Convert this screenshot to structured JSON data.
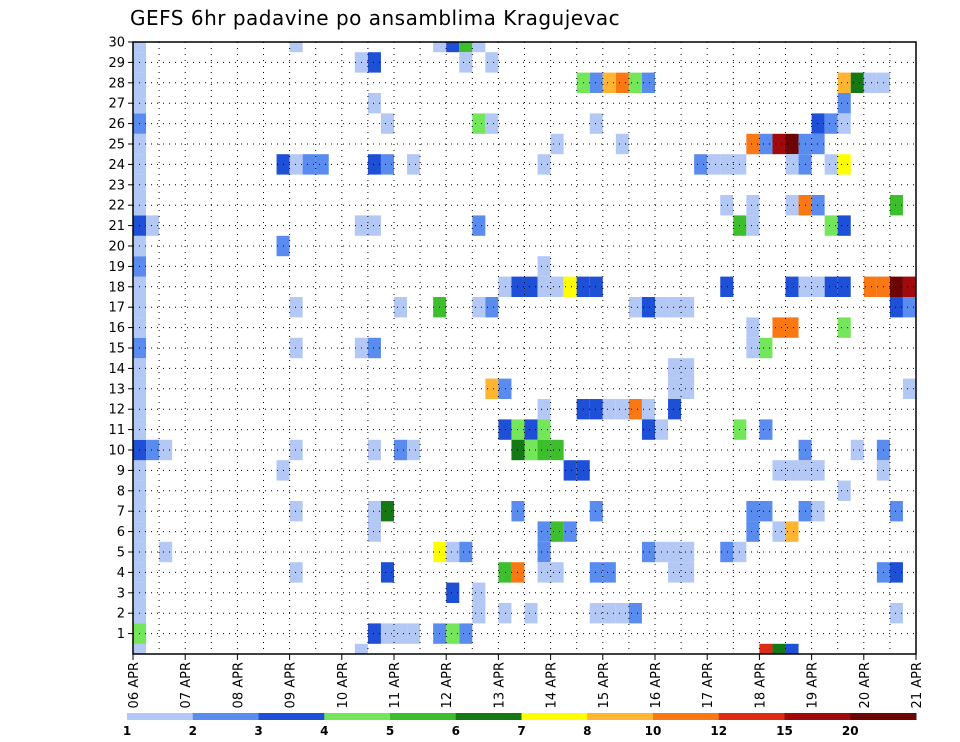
{
  "chart_data": {
    "type": "heatmap",
    "title": "GEFS 6hr padavine po ansamblima Kragujevac",
    "y_labels": [
      "1",
      "2",
      "3",
      "4",
      "5",
      "6",
      "7",
      "8",
      "9",
      "10",
      "11",
      "12",
      "13",
      "14",
      "15",
      "16",
      "17",
      "18",
      "19",
      "20",
      "21",
      "22",
      "23",
      "24",
      "25",
      "26",
      "27",
      "28",
      "29",
      "30"
    ],
    "x_labels": [
      "06 APR",
      "07 APR",
      "08 APR",
      "09 APR",
      "10 APR",
      "11 APR",
      "12 APR",
      "13 APR",
      "14 APR",
      "15 APR",
      "16 APR",
      "17 APR",
      "18 APR",
      "19 APR",
      "20 APR",
      "21 APR"
    ],
    "ylim": [
      0,
      30
    ],
    "xlim_days": [
      6,
      21
    ],
    "grid": true,
    "legend_position": "bottom",
    "legend": {
      "levels": [
        "1",
        "2",
        "3",
        "4",
        "5",
        "6",
        "7",
        "8",
        "10",
        "12",
        "15",
        "20"
      ],
      "colors": [
        "#b4c8f5",
        "#5a8cf0",
        "#1e50d7",
        "#73e65a",
        "#3cbe2d",
        "#147814",
        "#ffff00",
        "#ffb432",
        "#fa7814",
        "#dc2d14",
        "#a00a0a",
        "#6e0505"
      ]
    },
    "cells": [
      {
        "ens": 1,
        "day": 6.0,
        "v": 1
      },
      {
        "ens": 2,
        "day": 6.0,
        "v": 1
      },
      {
        "ens": 3,
        "day": 6.0,
        "v": 1
      },
      {
        "ens": 4,
        "day": 6.0,
        "v": 1
      },
      {
        "ens": 5,
        "day": 6.0,
        "v": 1
      },
      {
        "ens": 6,
        "day": 6.0,
        "v": 1
      },
      {
        "ens": 7,
        "day": 6.0,
        "v": 1
      },
      {
        "ens": 8,
        "day": 6.0,
        "v": 1
      },
      {
        "ens": 9,
        "day": 6.0,
        "v": 1
      },
      {
        "ens": 10,
        "day": 6.0,
        "v": 3
      },
      {
        "ens": 11,
        "day": 6.0,
        "v": 1
      },
      {
        "ens": 12,
        "day": 6.0,
        "v": 1
      },
      {
        "ens": 13,
        "day": 6.0,
        "v": 1
      },
      {
        "ens": 14,
        "day": 6.0,
        "v": 1
      },
      {
        "ens": 15,
        "day": 6.0,
        "v": 2
      },
      {
        "ens": 16,
        "day": 6.0,
        "v": 1
      },
      {
        "ens": 17,
        "day": 6.0,
        "v": 1
      },
      {
        "ens": 18,
        "day": 6.0,
        "v": 1
      },
      {
        "ens": 19,
        "day": 6.0,
        "v": 2
      },
      {
        "ens": 20,
        "day": 6.0,
        "v": 1
      },
      {
        "ens": 21,
        "day": 6.0,
        "v": 3
      },
      {
        "ens": 22,
        "day": 6.0,
        "v": 1
      },
      {
        "ens": 23,
        "day": 6.0,
        "v": 1
      },
      {
        "ens": 24,
        "day": 6.0,
        "v": 1
      },
      {
        "ens": 25,
        "day": 6.0,
        "v": 1
      },
      {
        "ens": 26,
        "day": 6.0,
        "v": 2
      },
      {
        "ens": 27,
        "day": 6.0,
        "v": 1
      },
      {
        "ens": 28,
        "day": 6.0,
        "v": 1
      },
      {
        "ens": 29,
        "day": 6.0,
        "v": 1
      },
      {
        "ens": 30,
        "day": 6.0,
        "v": 1
      },
      {
        "ens": 0,
        "day": 6.0,
        "v": 1
      },
      {
        "ens": 1,
        "day": 6.0,
        "v": 4
      },
      {
        "ens": 10,
        "day": 6.25,
        "v": 2
      },
      {
        "ens": 10,
        "day": 6.5,
        "v": 1
      },
      {
        "ens": 21,
        "day": 6.25,
        "v": 1
      },
      {
        "ens": 5,
        "day": 6.5,
        "v": 1
      },
      {
        "ens": 30,
        "day": 9.0,
        "v": 1
      },
      {
        "ens": 9,
        "day": 8.75,
        "v": 1
      },
      {
        "ens": 10,
        "day": 9.0,
        "v": 1
      },
      {
        "ens": 7,
        "day": 9.0,
        "v": 1
      },
      {
        "ens": 4,
        "day": 9.0,
        "v": 1
      },
      {
        "ens": 15,
        "day": 9.0,
        "v": 1
      },
      {
        "ens": 17,
        "day": 9.0,
        "v": 1
      },
      {
        "ens": 20,
        "day": 8.75,
        "v": 2
      },
      {
        "ens": 24,
        "day": 8.75,
        "v": 3
      },
      {
        "ens": 24,
        "day": 9.0,
        "v": 1
      },
      {
        "ens": 24,
        "day": 9.25,
        "v": 2
      },
      {
        "ens": 24,
        "day": 9.5,
        "v": 2
      },
      {
        "ens": 29,
        "day": 10.25,
        "v": 1
      },
      {
        "ens": 29,
        "day": 10.5,
        "v": 3
      },
      {
        "ens": 27,
        "day": 10.5,
        "v": 1
      },
      {
        "ens": 26,
        "day": 10.75,
        "v": 1
      },
      {
        "ens": 24,
        "day": 10.5,
        "v": 3
      },
      {
        "ens": 24,
        "day": 10.75,
        "v": 2
      },
      {
        "ens": 24,
        "day": 11.25,
        "v": 1
      },
      {
        "ens": 21,
        "day": 10.25,
        "v": 1
      },
      {
        "ens": 21,
        "day": 10.5,
        "v": 1
      },
      {
        "ens": 15,
        "day": 10.25,
        "v": 1
      },
      {
        "ens": 15,
        "day": 10.5,
        "v": 2
      },
      {
        "ens": 10,
        "day": 10.5,
        "v": 1
      },
      {
        "ens": 10,
        "day": 11.0,
        "v": 2
      },
      {
        "ens": 10,
        "day": 11.25,
        "v": 1
      },
      {
        "ens": 7,
        "day": 10.5,
        "v": 1
      },
      {
        "ens": 7,
        "day": 10.75,
        "v": 6
      },
      {
        "ens": 6,
        "day": 10.5,
        "v": 1
      },
      {
        "ens": 4,
        "day": 10.75,
        "v": 3
      },
      {
        "ens": 0,
        "day": 10.25,
        "v": 1
      },
      {
        "ens": 1,
        "day": 10.5,
        "v": 3
      },
      {
        "ens": 1,
        "day": 10.75,
        "v": 1
      },
      {
        "ens": 1,
        "day": 11.0,
        "v": 1
      },
      {
        "ens": 1,
        "day": 11.25,
        "v": 1
      },
      {
        "ens": 17,
        "day": 11.0,
        "v": 1
      },
      {
        "ens": 30,
        "day": 11.75,
        "v": 1
      },
      {
        "ens": 30,
        "day": 12.0,
        "v": 3
      },
      {
        "ens": 30,
        "day": 12.25,
        "v": 5
      },
      {
        "ens": 30,
        "day": 12.5,
        "v": 1
      },
      {
        "ens": 29,
        "day": 12.25,
        "v": 1
      },
      {
        "ens": 29,
        "day": 12.75,
        "v": 1
      },
      {
        "ens": 26,
        "day": 12.5,
        "v": 4
      },
      {
        "ens": 26,
        "day": 12.75,
        "v": 1
      },
      {
        "ens": 21,
        "day": 12.5,
        "v": 2
      },
      {
        "ens": 17,
        "day": 11.75,
        "v": 5
      },
      {
        "ens": 17,
        "day": 12.5,
        "v": 1
      },
      {
        "ens": 17,
        "day": 12.75,
        "v": 2
      },
      {
        "ens": 18,
        "day": 13.0,
        "v": 1
      },
      {
        "ens": 18,
        "day": 13.25,
        "v": 3
      },
      {
        "ens": 18,
        "day": 13.5,
        "v": 3
      },
      {
        "ens": 18,
        "day": 13.75,
        "v": 1
      },
      {
        "ens": 18,
        "day": 14.0,
        "v": 1
      },
      {
        "ens": 18,
        "day": 14.25,
        "v": 7
      },
      {
        "ens": 18,
        "day": 14.5,
        "v": 3
      },
      {
        "ens": 18,
        "day": 14.75,
        "v": 3
      },
      {
        "ens": 19,
        "day": 13.75,
        "v": 1
      },
      {
        "ens": 13,
        "day": 12.75,
        "v": 8
      },
      {
        "ens": 13,
        "day": 13.0,
        "v": 2
      },
      {
        "ens": 12,
        "day": 13.75,
        "v": 1
      },
      {
        "ens": 11,
        "day": 13.0,
        "v": 3
      },
      {
        "ens": 11,
        "day": 13.25,
        "v": 4
      },
      {
        "ens": 11,
        "day": 13.5,
        "v": 3
      },
      {
        "ens": 11,
        "day": 13.75,
        "v": 4
      },
      {
        "ens": 10,
        "day": 13.25,
        "v": 6
      },
      {
        "ens": 10,
        "day": 13.5,
        "v": 4
      },
      {
        "ens": 10,
        "day": 13.75,
        "v": 5
      },
      {
        "ens": 10,
        "day": 14.0,
        "v": 5
      },
      {
        "ens": 9,
        "day": 14.25,
        "v": 3
      },
      {
        "ens": 9,
        "day": 14.5,
        "v": 3
      },
      {
        "ens": 6,
        "day": 13.75,
        "v": 2
      },
      {
        "ens": 6,
        "day": 14.0,
        "v": 5
      },
      {
        "ens": 6,
        "day": 14.25,
        "v": 2
      },
      {
        "ens": 7,
        "day": 13.25,
        "v": 2
      },
      {
        "ens": 5,
        "day": 13.75,
        "v": 2
      },
      {
        "ens": 5,
        "day": 11.75,
        "v": 7
      },
      {
        "ens": 5,
        "day": 12.0,
        "v": 1
      },
      {
        "ens": 5,
        "day": 12.25,
        "v": 2
      },
      {
        "ens": 4,
        "day": 13.0,
        "v": 5
      },
      {
        "ens": 4,
        "day": 13.25,
        "v": 10
      },
      {
        "ens": 4,
        "day": 13.75,
        "v": 1
      },
      {
        "ens": 4,
        "day": 14.0,
        "v": 1
      },
      {
        "ens": 3,
        "day": 12.0,
        "v": 3
      },
      {
        "ens": 3,
        "day": 12.5,
        "v": 1
      },
      {
        "ens": 2,
        "day": 12.5,
        "v": 1
      },
      {
        "ens": 2,
        "day": 13.0,
        "v": 1
      },
      {
        "ens": 2,
        "day": 13.5,
        "v": 1
      },
      {
        "ens": 1,
        "day": 11.75,
        "v": 2
      },
      {
        "ens": 1,
        "day": 12.0,
        "v": 4
      },
      {
        "ens": 1,
        "day": 12.25,
        "v": 2
      },
      {
        "ens": 28,
        "day": 14.5,
        "v": 4
      },
      {
        "ens": 28,
        "day": 14.75,
        "v": 2
      },
      {
        "ens": 28,
        "day": 15.0,
        "v": 8
      },
      {
        "ens": 28,
        "day": 15.25,
        "v": 10
      },
      {
        "ens": 28,
        "day": 15.5,
        "v": 4
      },
      {
        "ens": 28,
        "day": 15.75,
        "v": 2
      },
      {
        "ens": 26,
        "day": 14.75,
        "v": 1
      },
      {
        "ens": 25,
        "day": 14.0,
        "v": 1
      },
      {
        "ens": 25,
        "day": 15.25,
        "v": 1
      },
      {
        "ens": 24,
        "day": 13.75,
        "v": 1
      },
      {
        "ens": 12,
        "day": 14.5,
        "v": 3
      },
      {
        "ens": 12,
        "day": 14.75,
        "v": 3
      },
      {
        "ens": 12,
        "day": 15.0,
        "v": 1
      },
      {
        "ens": 12,
        "day": 15.25,
        "v": 1
      },
      {
        "ens": 12,
        "day": 15.5,
        "v": 10
      },
      {
        "ens": 12,
        "day": 15.75,
        "v": 1
      },
      {
        "ens": 12,
        "day": 16.25,
        "v": 3
      },
      {
        "ens": 11,
        "day": 15.75,
        "v": 3
      },
      {
        "ens": 11,
        "day": 16.0,
        "v": 1
      },
      {
        "ens": 7,
        "day": 14.75,
        "v": 2
      },
      {
        "ens": 5,
        "day": 15.75,
        "v": 2
      },
      {
        "ens": 5,
        "day": 16.0,
        "v": 1
      },
      {
        "ens": 5,
        "day": 16.25,
        "v": 1
      },
      {
        "ens": 5,
        "day": 16.5,
        "v": 1
      },
      {
        "ens": 4,
        "day": 14.75,
        "v": 2
      },
      {
        "ens": 4,
        "day": 15.0,
        "v": 2
      },
      {
        "ens": 4,
        "day": 16.25,
        "v": 1
      },
      {
        "ens": 4,
        "day": 16.5,
        "v": 1
      },
      {
        "ens": 2,
        "day": 14.75,
        "v": 1
      },
      {
        "ens": 2,
        "day": 15.0,
        "v": 1
      },
      {
        "ens": 2,
        "day": 15.25,
        "v": 1
      },
      {
        "ens": 2,
        "day": 15.5,
        "v": 2
      },
      {
        "ens": 17,
        "day": 15.5,
        "v": 1
      },
      {
        "ens": 17,
        "day": 15.75,
        "v": 3
      },
      {
        "ens": 17,
        "day": 16.0,
        "v": 1
      },
      {
        "ens": 17,
        "day": 16.25,
        "v": 1
      },
      {
        "ens": 17,
        "day": 16.5,
        "v": 1
      },
      {
        "ens": 14,
        "day": 16.25,
        "v": 1
      },
      {
        "ens": 14,
        "day": 16.5,
        "v": 1
      },
      {
        "ens": 13,
        "day": 16.25,
        "v": 1
      },
      {
        "ens": 13,
        "day": 16.5,
        "v": 1
      },
      {
        "ens": 24,
        "day": 16.75,
        "v": 2
      },
      {
        "ens": 24,
        "day": 17.0,
        "v": 1
      },
      {
        "ens": 24,
        "day": 17.25,
        "v": 1
      },
      {
        "ens": 24,
        "day": 17.5,
        "v": 1
      },
      {
        "ens": 22,
        "day": 17.25,
        "v": 1
      },
      {
        "ens": 22,
        "day": 17.75,
        "v": 1
      },
      {
        "ens": 21,
        "day": 17.5,
        "v": 5
      },
      {
        "ens": 21,
        "day": 17.75,
        "v": 1
      },
      {
        "ens": 18,
        "day": 17.25,
        "v": 3
      },
      {
        "ens": 16,
        "day": 17.75,
        "v": 1
      },
      {
        "ens": 15,
        "day": 17.75,
        "v": 1
      },
      {
        "ens": 15,
        "day": 18.0,
        "v": 4
      },
      {
        "ens": 11,
        "day": 17.5,
        "v": 4
      },
      {
        "ens": 11,
        "day": 18.0,
        "v": 2
      },
      {
        "ens": 7,
        "day": 17.75,
        "v": 2
      },
      {
        "ens": 7,
        "day": 18.0,
        "v": 2
      },
      {
        "ens": 6,
        "day": 17.75,
        "v": 2
      },
      {
        "ens": 5,
        "day": 17.25,
        "v": 2
      },
      {
        "ens": 5,
        "day": 17.5,
        "v": 1
      },
      {
        "ens": 0,
        "day": 18.0,
        "v": 12
      },
      {
        "ens": 0,
        "day": 18.25,
        "v": 6
      },
      {
        "ens": 0,
        "day": 18.5,
        "v": 3
      },
      {
        "ens": 25,
        "day": 17.75,
        "v": 10
      },
      {
        "ens": 25,
        "day": 18.0,
        "v": 2
      },
      {
        "ens": 25,
        "day": 18.25,
        "v": 15
      },
      {
        "ens": 25,
        "day": 18.5,
        "v": 20
      },
      {
        "ens": 25,
        "day": 18.75,
        "v": 2
      },
      {
        "ens": 24,
        "day": 18.5,
        "v": 1
      },
      {
        "ens": 24,
        "day": 18.75,
        "v": 2
      },
      {
        "ens": 22,
        "day": 18.5,
        "v": 1
      },
      {
        "ens": 22,
        "day": 18.75,
        "v": 10
      },
      {
        "ens": 22,
        "day": 19.0,
        "v": 2
      },
      {
        "ens": 21,
        "day": 19.25,
        "v": 4
      },
      {
        "ens": 21,
        "day": 19.5,
        "v": 3
      },
      {
        "ens": 18,
        "day": 18.5,
        "v": 3
      },
      {
        "ens": 18,
        "day": 18.75,
        "v": 1
      },
      {
        "ens": 18,
        "day": 19.0,
        "v": 1
      },
      {
        "ens": 18,
        "day": 19.25,
        "v": 3
      },
      {
        "ens": 18,
        "day": 19.5,
        "v": 3
      },
      {
        "ens": 16,
        "day": 18.25,
        "v": 10
      },
      {
        "ens": 16,
        "day": 18.5,
        "v": 10
      },
      {
        "ens": 16,
        "day": 19.5,
        "v": 4
      },
      {
        "ens": 10,
        "day": 18.75,
        "v": 2
      },
      {
        "ens": 9,
        "day": 18.25,
        "v": 1
      },
      {
        "ens": 9,
        "day": 18.5,
        "v": 1
      },
      {
        "ens": 9,
        "day": 18.75,
        "v": 1
      },
      {
        "ens": 9,
        "day": 19.0,
        "v": 1
      },
      {
        "ens": 7,
        "day": 18.75,
        "v": 2
      },
      {
        "ens": 7,
        "day": 19.0,
        "v": 1
      },
      {
        "ens": 6,
        "day": 18.25,
        "v": 1
      },
      {
        "ens": 6,
        "day": 18.5,
        "v": 8
      },
      {
        "ens": 8,
        "day": 19.5,
        "v": 1
      },
      {
        "ens": 10,
        "day": 19.75,
        "v": 1
      },
      {
        "ens": 28,
        "day": 19.5,
        "v": 8
      },
      {
        "ens": 28,
        "day": 19.75,
        "v": 6
      },
      {
        "ens": 28,
        "day": 20.0,
        "v": 1
      },
      {
        "ens": 28,
        "day": 20.25,
        "v": 1
      },
      {
        "ens": 27,
        "day": 19.5,
        "v": 2
      },
      {
        "ens": 26,
        "day": 19.0,
        "v": 3
      },
      {
        "ens": 26,
        "day": 19.25,
        "v": 2
      },
      {
        "ens": 26,
        "day": 19.5,
        "v": 1
      },
      {
        "ens": 25,
        "day": 19.0,
        "v": 2
      },
      {
        "ens": 24,
        "day": 19.25,
        "v": 1
      },
      {
        "ens": 24,
        "day": 19.5,
        "v": 7
      },
      {
        "ens": 22,
        "day": 20.5,
        "v": 5
      },
      {
        "ens": 18,
        "day": 20.0,
        "v": 10
      },
      {
        "ens": 18,
        "day": 20.25,
        "v": 10
      },
      {
        "ens": 18,
        "day": 20.5,
        "v": 20
      },
      {
        "ens": 18,
        "day": 20.75,
        "v": 15
      },
      {
        "ens": 17,
        "day": 20.5,
        "v": 3
      },
      {
        "ens": 17,
        "day": 20.75,
        "v": 2
      },
      {
        "ens": 13,
        "day": 20.75,
        "v": 1
      },
      {
        "ens": 10,
        "day": 20.25,
        "v": 2
      },
      {
        "ens": 9,
        "day": 20.25,
        "v": 1
      },
      {
        "ens": 7,
        "day": 20.5,
        "v": 2
      },
      {
        "ens": 4,
        "day": 20.25,
        "v": 2
      },
      {
        "ens": 4,
        "day": 20.5,
        "v": 3
      },
      {
        "ens": 2,
        "day": 20.5,
        "v": 1
      }
    ]
  }
}
